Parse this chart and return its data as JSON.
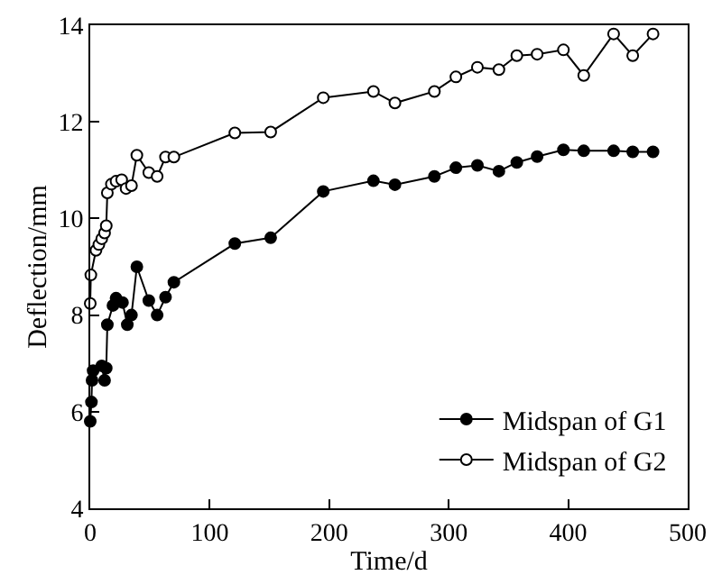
{
  "chart_data": {
    "type": "line",
    "xlabel": "Time/d",
    "ylabel": "Deflection/mm",
    "xlim": [
      0,
      500
    ],
    "xticks": [
      0,
      100,
      200,
      300,
      400,
      500
    ],
    "ylim": [
      4,
      14
    ],
    "yticks": [
      4,
      6,
      8,
      10,
      12,
      14
    ],
    "grid": false,
    "legend": "bottom right",
    "marker": "circle",
    "line_style": "solid",
    "series": [
      {
        "name": "Midspan of G1",
        "color": "#000000",
        "x": [
          0,
          1,
          1.5,
          2.4,
          9.6,
          12,
          13.4,
          14.3,
          19,
          21.6,
          27,
          31,
          34.5,
          39,
          49,
          56,
          63,
          70,
          121,
          151,
          195,
          237,
          255,
          288,
          306,
          324,
          342,
          357,
          374,
          396,
          413,
          438,
          454,
          471
        ],
        "values": [
          5.8,
          6.2,
          6.65,
          6.85,
          6.95,
          6.65,
          6.9,
          7.8,
          8.2,
          8.35,
          8.26,
          7.8,
          8.0,
          9.0,
          8.3,
          8.0,
          8.37,
          8.68,
          9.48,
          9.6,
          10.56,
          10.78,
          10.7,
          10.87,
          11.05,
          11.1,
          10.98,
          11.16,
          11.28,
          11.42,
          11.4,
          11.4,
          11.38,
          11.38
        ]
      },
      {
        "name": "Midspan of G2",
        "color": "#ffffff",
        "x": [
          0,
          0.5,
          4.8,
          7.2,
          9.6,
          12,
          13.4,
          14.3,
          17.7,
          21.6,
          26.3,
          30,
          34.5,
          39,
          49,
          56,
          63,
          70,
          121,
          151,
          195,
          237,
          255,
          288,
          306,
          324,
          342,
          357,
          374,
          396,
          413,
          438,
          454,
          471
        ],
        "values": [
          8.24,
          8.83,
          9.34,
          9.46,
          9.58,
          9.7,
          9.85,
          10.53,
          10.71,
          10.77,
          10.8,
          10.62,
          10.68,
          11.31,
          10.95,
          10.87,
          11.27,
          11.27,
          11.77,
          11.79,
          12.5,
          12.63,
          12.39,
          12.63,
          12.93,
          13.13,
          13.08,
          13.37,
          13.4,
          13.49,
          12.96,
          13.82,
          13.37,
          13.82
        ]
      }
    ]
  }
}
